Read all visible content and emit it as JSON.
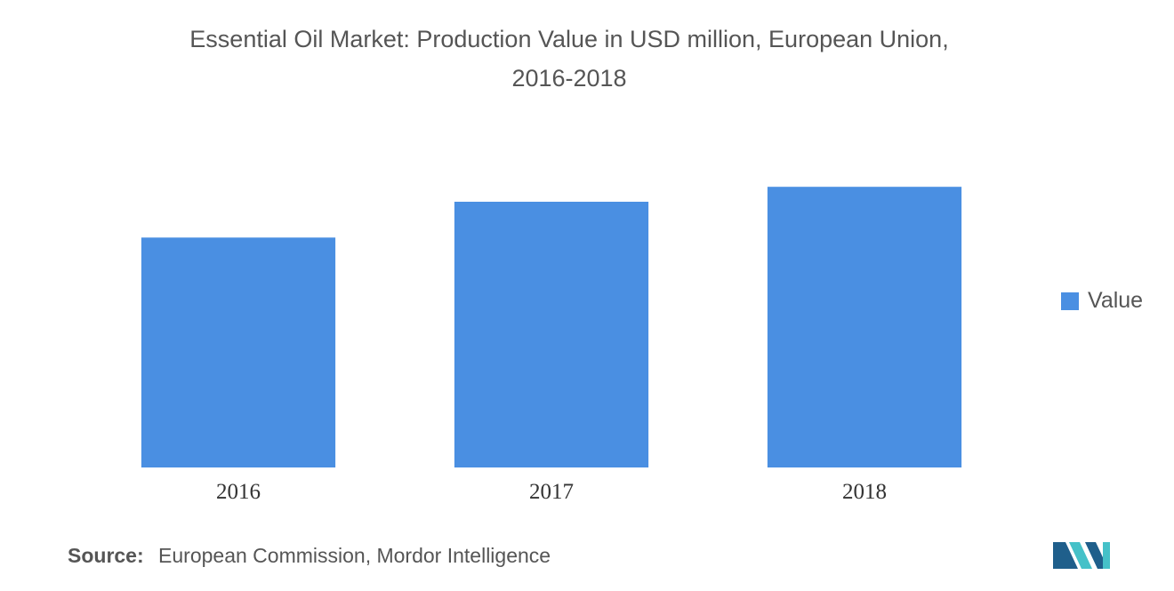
{
  "title_line1": "Essential Oil Market: Production Value in USD million, European Union,",
  "title_line2": "2016-2018",
  "colors": {
    "bar": "#4a8fe2",
    "text": "#555555",
    "logo_dark": "#1f5f8b",
    "logo_light": "#45c1c8"
  },
  "chart_data": {
    "type": "bar",
    "categories": [
      "2016",
      "2017",
      "2018"
    ],
    "series": [
      {
        "name": "Value",
        "values": [
          77,
          89,
          94
        ]
      }
    ],
    "title": "Essential Oil Market: Production Value in USD million, European Union, 2016-2018",
    "xlabel": "",
    "ylabel": "",
    "ylim": [
      0,
      100
    ],
    "grid": false,
    "legend": "right"
  },
  "legend": {
    "label": "Value"
  },
  "source": {
    "label": "Source:",
    "text": "European Commission, Mordor Intelligence"
  },
  "logo": {
    "icon": "mordor-intelligence-logo-icon"
  }
}
